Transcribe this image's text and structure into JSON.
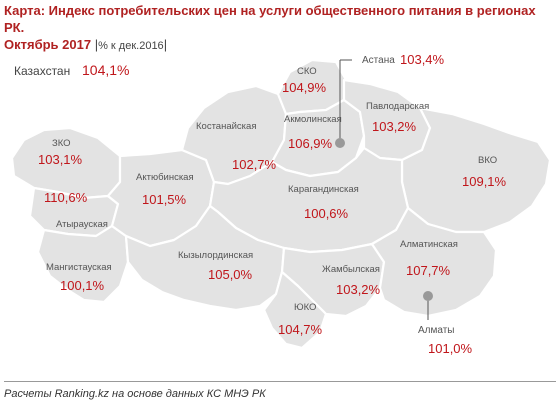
{
  "title": {
    "main": "Карта: Индекс потребительских цен на услуги общественного питания в регионах РК.",
    "period": "Октябрь 2017",
    "separator": "|",
    "unit": "% к дек.2016",
    "end": "|"
  },
  "country": {
    "name": "Казахстан",
    "value": "104,1%"
  },
  "regions": {
    "zko": {
      "name": "ЗКО",
      "value": "103,1%"
    },
    "atyrau": {
      "name": "Атырауская",
      "value": "110,6%"
    },
    "mangistau": {
      "name": "Мангистауская",
      "value": "100,1%"
    },
    "aktobe": {
      "name": "Актюбинская",
      "value": "101,5%"
    },
    "kostanay": {
      "name": "Костанайская",
      "value": "102,7%"
    },
    "sko": {
      "name": "СКО",
      "value": "104,9%"
    },
    "akmola": {
      "name": "Акмолинская",
      "value": "106,9%"
    },
    "pavlodar": {
      "name": "Павлодарская",
      "value": "103,2%"
    },
    "vko": {
      "name": "ВКО",
      "value": "109,1%"
    },
    "karaganda": {
      "name": "Карагандинская",
      "value": "100,6%"
    },
    "kyzylorda": {
      "name": "Кызылординская",
      "value": "105,0%"
    },
    "zhambyl": {
      "name": "Жамбылская",
      "value": "103,2%"
    },
    "yuko": {
      "name": "ЮКО",
      "value": "104,7%"
    },
    "almaty_region": {
      "name": "Алматинская",
      "value": "107,7%"
    }
  },
  "cities": {
    "astana": {
      "name": "Астана",
      "value": "103,4%"
    },
    "almaty": {
      "name": "Алматы",
      "value": "101,0%"
    }
  },
  "source": "Расчеты Ranking.kz на основе данных КС МНЭ РК",
  "colors": {
    "region_fill": "#e3e3e3",
    "value_text": "#c0161b",
    "title_text": "#b02222",
    "city_marker": "#999999"
  }
}
